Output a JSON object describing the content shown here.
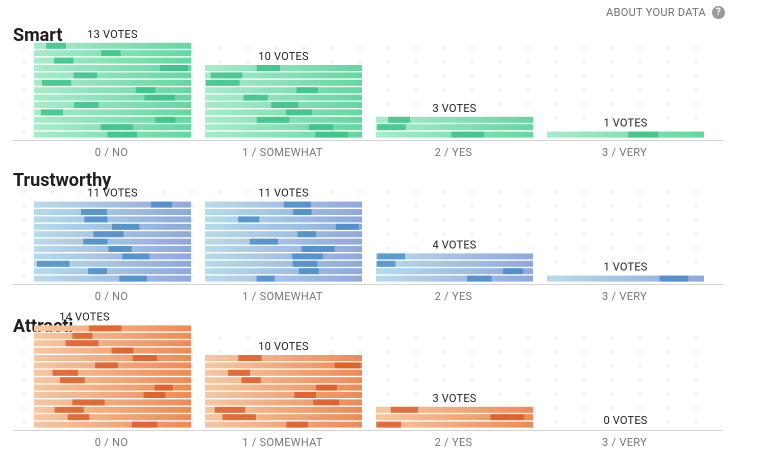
{
  "header": {
    "about_label": "ABOUT YOUR DATA",
    "help_icon": "?"
  },
  "categories": [
    "0 / NO",
    "1 / SOMEWHAT",
    "2 / YES",
    "3 / VERY"
  ],
  "chart_data": [
    {
      "type": "bar",
      "title": "Smart",
      "categories": [
        "0 / NO",
        "1 / SOMEWHAT",
        "2 / YES",
        "3 / VERY"
      ],
      "values": [
        13,
        10,
        3,
        1
      ],
      "value_labels": [
        "13 VOTES",
        "10 VOTES",
        "3 VOTES",
        "1 VOTES"
      ],
      "colors": {
        "light": "#a8ecca",
        "mid": "#63d7a0",
        "dark": "#2fbf82"
      }
    },
    {
      "type": "bar",
      "title": "Trustworthy",
      "categories": [
        "0 / NO",
        "1 / SOMEWHAT",
        "2 / YES",
        "3 / VERY"
      ],
      "values": [
        11,
        11,
        4,
        1
      ],
      "value_labels": [
        "11 VOTES",
        "11 VOTES",
        "4 VOTES",
        "1 VOTES"
      ],
      "colors": {
        "light": "#b7dbea",
        "mid": "#8fa8dc",
        "dark": "#3f86c6"
      }
    },
    {
      "type": "bar",
      "title": "Attracti",
      "categories": [
        "0 / NO",
        "1 / SOMEWHAT",
        "2 / YES",
        "3 / VERY"
      ],
      "values": [
        14,
        10,
        3,
        0
      ],
      "value_labels": [
        "14 VOTES",
        "10 VOTES",
        "3 VOTES",
        "0 VOTES"
      ],
      "colors": {
        "light": "#f6c7a2",
        "mid": "#ee8a56",
        "dark": "#d9531e"
      }
    }
  ]
}
